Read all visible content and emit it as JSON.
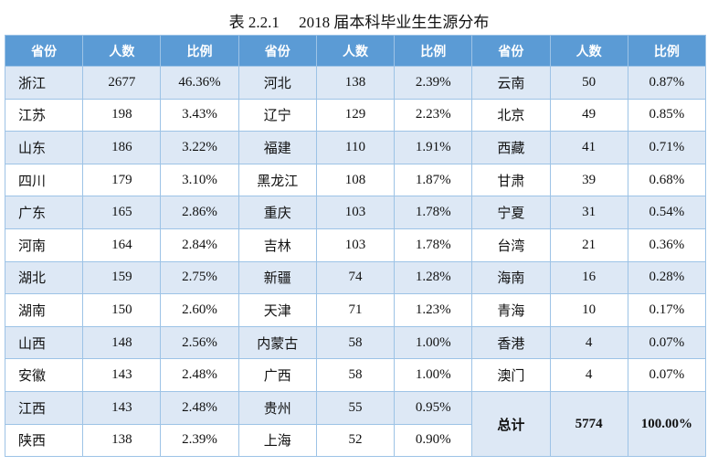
{
  "title": "表 2.2.1　 2018 届本科毕业生生源分布",
  "table": {
    "header": [
      "省份",
      "人数",
      "比例",
      "省份",
      "人数",
      "比例",
      "省份",
      "人数",
      "比例"
    ],
    "rows": [
      [
        "浙江",
        2677,
        "46.36%",
        "河北",
        138,
        "2.39%",
        "云南",
        50,
        "0.87%"
      ],
      [
        "江苏",
        198,
        "3.43%",
        "辽宁",
        129,
        "2.23%",
        "北京",
        49,
        "0.85%"
      ],
      [
        "山东",
        186,
        "3.22%",
        "福建",
        110,
        "1.91%",
        "西藏",
        41,
        "0.71%"
      ],
      [
        "四川",
        179,
        "3.10%",
        "黑龙江",
        108,
        "1.87%",
        "甘肃",
        39,
        "0.68%"
      ],
      [
        "广东",
        165,
        "2.86%",
        "重庆",
        103,
        "1.78%",
        "宁夏",
        31,
        "0.54%"
      ],
      [
        "河南",
        164,
        "2.84%",
        "吉林",
        103,
        "1.78%",
        "台湾",
        21,
        "0.36%"
      ],
      [
        "湖北",
        159,
        "2.75%",
        "新疆",
        74,
        "1.28%",
        "海南",
        16,
        "0.28%"
      ],
      [
        "湖南",
        150,
        "2.60%",
        "天津",
        71,
        "1.23%",
        "青海",
        10,
        "0.17%"
      ],
      [
        "山西",
        148,
        "2.56%",
        "内蒙古",
        58,
        "1.00%",
        "香港",
        4,
        "0.07%"
      ],
      [
        "安徽",
        143,
        "2.48%",
        "广西",
        58,
        "1.00%",
        "澳门",
        4,
        "0.07%"
      ],
      [
        "江西",
        143,
        "2.48%",
        "贵州",
        55,
        "0.95%"
      ],
      [
        "陕西",
        138,
        "2.39%",
        "上海",
        52,
        "0.90%"
      ]
    ],
    "total": {
      "label": "总计",
      "count": 5774,
      "percent": "100.00%"
    }
  }
}
